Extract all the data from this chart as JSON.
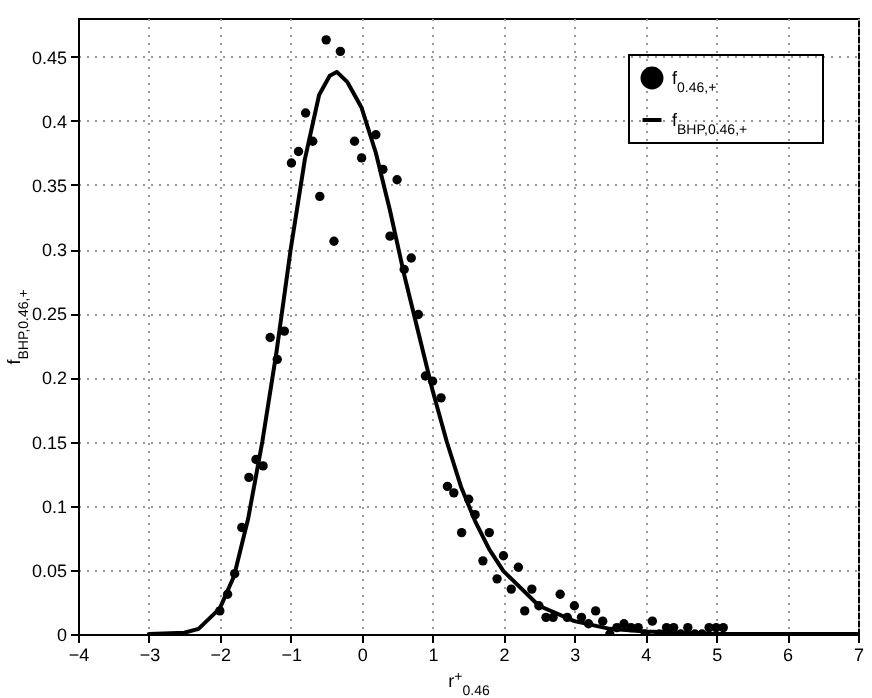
{
  "chart_data": {
    "type": "scatter",
    "xlabel": "r$^{+}$$_{0.46}$",
    "ylabel": "f$_{BHP,0.46,+}$",
    "xlim": [
      -4,
      7
    ],
    "ylim": [
      0,
      0.48
    ],
    "xticks": [
      -4,
      -3,
      -2,
      -1,
      0,
      1,
      2,
      3,
      4,
      5,
      6,
      7
    ],
    "yticks": [
      0,
      0.05,
      0.1,
      0.15,
      0.2,
      0.25,
      0.3,
      0.35,
      0.4,
      0.45
    ],
    "grid": true,
    "legend": "top right",
    "line_style": "solid",
    "series": [
      {
        "name": "f$_{0.46,+}$",
        "marker": "circle",
        "color": "#000000",
        "x": [
          -2.0,
          -1.89,
          -1.79,
          -1.69,
          -1.59,
          -1.49,
          -1.39,
          -1.29,
          -1.19,
          -1.09,
          -0.99,
          -0.89,
          -0.79,
          -0.69,
          -0.59,
          -0.5,
          -0.39,
          -0.3,
          -0.1,
          0.0,
          0.2,
          0.3,
          0.4,
          0.5,
          0.6,
          0.7,
          0.8,
          0.9,
          1.0,
          1.12,
          1.21,
          1.3,
          1.41,
          1.51,
          1.6,
          1.71,
          1.8,
          1.91,
          2.0,
          2.11,
          2.21,
          2.3,
          2.4,
          2.5,
          2.6,
          2.7,
          2.8,
          2.9,
          3.0,
          3.1,
          3.2,
          3.3,
          3.4,
          3.5,
          3.6,
          3.7,
          3.8,
          3.9,
          4.0,
          4.1,
          4.2,
          4.3,
          4.4,
          4.5,
          4.6,
          4.7,
          4.8,
          4.9,
          5.0,
          5.1
        ],
        "values": [
          0.018,
          0.031,
          0.047,
          0.083,
          0.122,
          0.136,
          0.131,
          0.231,
          0.214,
          0.236,
          0.367,
          0.376,
          0.406,
          0.384,
          0.341,
          0.463,
          0.306,
          0.454,
          0.384,
          0.371,
          0.389,
          0.362,
          0.31,
          0.354,
          0.284,
          0.293,
          0.249,
          0.201,
          0.197,
          0.184,
          0.115,
          0.11,
          0.079,
          0.105,
          0.093,
          0.057,
          0.079,
          0.043,
          0.061,
          0.035,
          0.052,
          0.018,
          0.035,
          0.022,
          0.013,
          0.013,
          0.031,
          0.013,
          0.022,
          0.013,
          0.008,
          0.018,
          0.01,
          0.0,
          0.005,
          0.008,
          0.005,
          0.005,
          0.0,
          0.01,
          0.0,
          0.005,
          0.005,
          0.0,
          0.005,
          0.0,
          0.0,
          0.005,
          0.005,
          0.005
        ]
      },
      {
        "name": "f$_{BHP,0.46,+}$",
        "type": "line",
        "color": "#000000",
        "x": [
          -3.0,
          -2.5,
          -2.3,
          -2.0,
          -1.8,
          -1.6,
          -1.4,
          -1.2,
          -1.0,
          -0.8,
          -0.6,
          -0.45,
          -0.35,
          -0.2,
          0.0,
          0.2,
          0.4,
          0.6,
          0.8,
          1.0,
          1.2,
          1.4,
          1.6,
          1.8,
          2.0,
          2.5,
          3.0,
          3.5,
          4.0,
          5.0,
          6.0,
          7.0
        ],
        "values": [
          0,
          0.001,
          0.004,
          0.02,
          0.045,
          0.09,
          0.15,
          0.22,
          0.3,
          0.37,
          0.42,
          0.435,
          0.438,
          0.43,
          0.41,
          0.375,
          0.33,
          0.28,
          0.235,
          0.19,
          0.15,
          0.115,
          0.088,
          0.066,
          0.049,
          0.022,
          0.01,
          0.004,
          0.002,
          0,
          0,
          0
        ]
      }
    ]
  }
}
